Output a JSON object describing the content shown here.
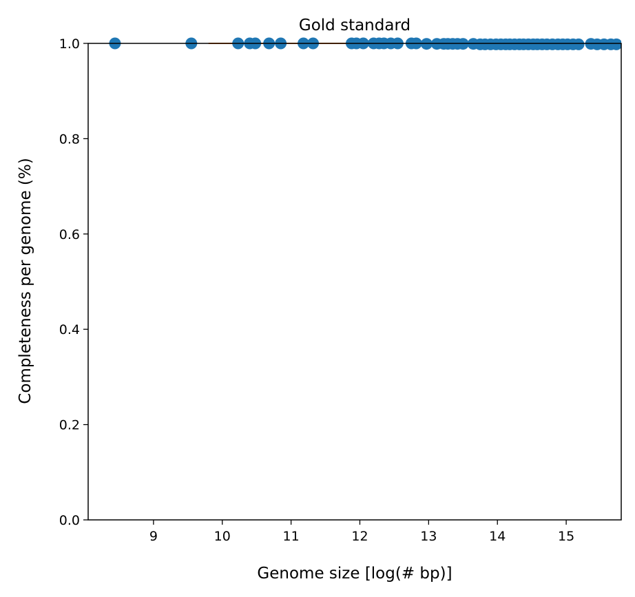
{
  "chart_data": {
    "type": "scatter",
    "title": "Gold standard",
    "xlabel": "Genome size [log(# bp)]",
    "ylabel": "Completeness per genome (%)",
    "xlim": [
      8.05,
      15.8
    ],
    "ylim": [
      0.0,
      1.0
    ],
    "xticks": [
      9,
      10,
      11,
      12,
      13,
      14,
      15
    ],
    "yticks": [
      0.0,
      0.2,
      0.4,
      0.6,
      0.8,
      1.0
    ],
    "xtick_labels": [
      "9",
      "10",
      "11",
      "12",
      "13",
      "14",
      "15"
    ],
    "ytick_labels": [
      "0.0",
      "0.2",
      "0.4",
      "0.6",
      "0.8",
      "1.0"
    ],
    "grid": false,
    "series": [
      {
        "marker_color": "#1f77b4",
        "points": [
          {
            "x": 8.44,
            "y": 1.0
          },
          {
            "x": 9.55,
            "y": 1.0
          },
          {
            "x": 10.23,
            "y": 1.0
          },
          {
            "x": 10.4,
            "y": 1.0
          },
          {
            "x": 10.48,
            "y": 1.0
          },
          {
            "x": 10.68,
            "y": 1.0
          },
          {
            "x": 10.85,
            "y": 1.0
          },
          {
            "x": 11.18,
            "y": 1.0
          },
          {
            "x": 11.32,
            "y": 1.0
          },
          {
            "x": 11.88,
            "y": 1.0
          },
          {
            "x": 11.95,
            "y": 1.0
          },
          {
            "x": 12.05,
            "y": 1.0
          },
          {
            "x": 12.2,
            "y": 1.0
          },
          {
            "x": 12.28,
            "y": 1.0
          },
          {
            "x": 12.35,
            "y": 1.0
          },
          {
            "x": 12.45,
            "y": 1.0
          },
          {
            "x": 12.55,
            "y": 1.0
          },
          {
            "x": 12.75,
            "y": 1.0
          },
          {
            "x": 12.82,
            "y": 1.0
          },
          {
            "x": 12.97,
            "y": 0.999
          },
          {
            "x": 13.12,
            "y": 0.999
          },
          {
            "x": 13.22,
            "y": 0.999
          },
          {
            "x": 13.28,
            "y": 0.999
          },
          {
            "x": 13.35,
            "y": 0.999
          },
          {
            "x": 13.42,
            "y": 0.999
          },
          {
            "x": 13.5,
            "y": 0.999
          },
          {
            "x": 13.65,
            "y": 0.999
          },
          {
            "x": 13.75,
            "y": 0.998
          },
          {
            "x": 13.82,
            "y": 0.998
          },
          {
            "x": 13.9,
            "y": 0.998
          },
          {
            "x": 13.98,
            "y": 0.998
          },
          {
            "x": 14.05,
            "y": 0.998
          },
          {
            "x": 14.12,
            "y": 0.998
          },
          {
            "x": 14.18,
            "y": 0.998
          },
          {
            "x": 14.25,
            "y": 0.998
          },
          {
            "x": 14.32,
            "y": 0.998
          },
          {
            "x": 14.38,
            "y": 0.998
          },
          {
            "x": 14.45,
            "y": 0.998
          },
          {
            "x": 14.52,
            "y": 0.998
          },
          {
            "x": 14.58,
            "y": 0.998
          },
          {
            "x": 14.65,
            "y": 0.998
          },
          {
            "x": 14.72,
            "y": 0.998
          },
          {
            "x": 14.8,
            "y": 0.998
          },
          {
            "x": 14.88,
            "y": 0.998
          },
          {
            "x": 14.95,
            "y": 0.998
          },
          {
            "x": 15.02,
            "y": 0.998
          },
          {
            "x": 15.1,
            "y": 0.998
          },
          {
            "x": 15.18,
            "y": 0.998
          },
          {
            "x": 15.36,
            "y": 0.999
          },
          {
            "x": 15.45,
            "y": 0.998
          },
          {
            "x": 15.55,
            "y": 0.998
          },
          {
            "x": 15.65,
            "y": 0.998
          },
          {
            "x": 15.73,
            "y": 0.998
          }
        ]
      },
      {
        "line_color": "#ff7f0e",
        "x": [
          9.8,
          11.8
        ],
        "y": [
          1.0,
          1.0
        ]
      }
    ]
  }
}
